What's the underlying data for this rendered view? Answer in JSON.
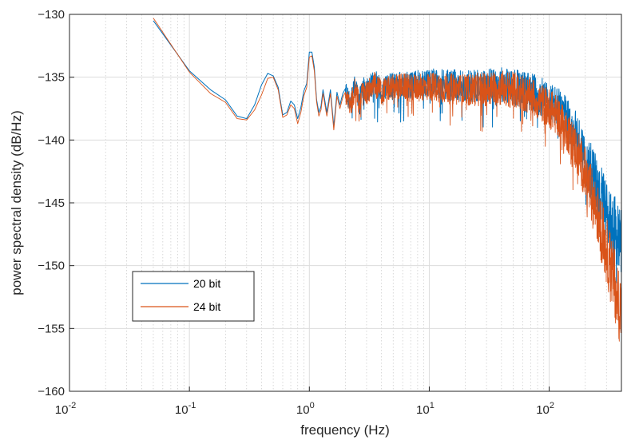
{
  "chart_data": {
    "type": "line",
    "title": "",
    "xlabel": "frequency (Hz)",
    "ylabel": "power spectral density (dB/Hz)",
    "xscale": "log",
    "xlim": [
      0.01,
      400
    ],
    "ylim": [
      -160,
      -130
    ],
    "grid": true,
    "x_ticks": [
      {
        "value": 0.01,
        "base": "10",
        "exp": "-2"
      },
      {
        "value": 0.1,
        "base": "10",
        "exp": "-1"
      },
      {
        "value": 1,
        "base": "10",
        "exp": "0"
      },
      {
        "value": 10,
        "base": "10",
        "exp": "1"
      },
      {
        "value": 100,
        "base": "10",
        "exp": "2"
      }
    ],
    "y_ticks": [
      {
        "value": -130,
        "label": "−130"
      },
      {
        "value": -135,
        "label": "−135"
      },
      {
        "value": -140,
        "label": "−140"
      },
      {
        "value": -145,
        "label": "−145"
      },
      {
        "value": -150,
        "label": "−150"
      },
      {
        "value": -155,
        "label": "−155"
      },
      {
        "value": -160,
        "label": "−160"
      }
    ],
    "legend": {
      "placement": "lower-left",
      "entries": [
        "20 bit",
        "24 bit"
      ]
    },
    "series": [
      {
        "name": "20 bit",
        "color": "#0072BD",
        "x": [
          0.05,
          0.1,
          0.15,
          0.2,
          0.25,
          0.3,
          0.35,
          0.4,
          0.45,
          0.5,
          0.55,
          0.6,
          0.65,
          0.7,
          0.75,
          0.8,
          0.85,
          0.9,
          0.95,
          1.0,
          1.05,
          1.1,
          1.15,
          1.2,
          1.25,
          1.3,
          1.4,
          1.5,
          1.6,
          1.7,
          1.8,
          1.9,
          2.0,
          2.2,
          2.4,
          2.6,
          2.8,
          3.0,
          3.5,
          4,
          5,
          6,
          7,
          8,
          9,
          10,
          15,
          20,
          30,
          40,
          50,
          60,
          70,
          80,
          100,
          120,
          150,
          180,
          200,
          250,
          300,
          350,
          400
        ],
        "y": [
          -130.5,
          -134.5,
          -136.0,
          -136.8,
          -138.1,
          -138.3,
          -137.2,
          -135.6,
          -134.7,
          -134.9,
          -135.8,
          -138.0,
          -137.8,
          -136.9,
          -137.2,
          -138.3,
          -137.4,
          -136.1,
          -135.5,
          -133.0,
          -133.0,
          -134.2,
          -136.8,
          -137.8,
          -137.3,
          -136.0,
          -137.8,
          -136.0,
          -138.9,
          -136.2,
          -137.2,
          -136.3,
          -135.9,
          -137.0,
          -135.5,
          -136.8,
          -135.6,
          -136.0,
          -135.2,
          -135.8,
          -135.5,
          -135.4,
          -135.6,
          -135.4,
          -135.5,
          -135.3,
          -135.5,
          -135.6,
          -135.5,
          -135.4,
          -135.6,
          -135.8,
          -136.0,
          -136.3,
          -136.8,
          -137.3,
          -138.5,
          -140.0,
          -141.2,
          -143.5,
          -145.5,
          -147.0,
          -148.0
        ]
      },
      {
        "name": "24 bit",
        "color": "#D95319",
        "x": [
          0.05,
          0.1,
          0.15,
          0.2,
          0.25,
          0.3,
          0.35,
          0.4,
          0.45,
          0.5,
          0.55,
          0.6,
          0.65,
          0.7,
          0.75,
          0.8,
          0.85,
          0.9,
          0.95,
          1.0,
          1.05,
          1.1,
          1.15,
          1.2,
          1.25,
          1.3,
          1.4,
          1.5,
          1.6,
          1.7,
          1.8,
          1.9,
          2.0,
          2.2,
          2.4,
          2.6,
          2.8,
          3.0,
          3.5,
          4,
          5,
          6,
          7,
          8,
          9,
          10,
          15,
          20,
          30,
          40,
          50,
          60,
          70,
          80,
          100,
          120,
          150,
          180,
          200,
          250,
          300,
          350,
          400
        ],
        "y": [
          -130.3,
          -134.6,
          -136.3,
          -137.0,
          -138.3,
          -138.4,
          -137.6,
          -136.4,
          -135.1,
          -135.0,
          -136.0,
          -138.2,
          -138.0,
          -137.2,
          -137.5,
          -138.7,
          -137.8,
          -136.5,
          -135.8,
          -133.4,
          -133.3,
          -134.5,
          -137.0,
          -138.1,
          -137.6,
          -136.3,
          -138.1,
          -136.3,
          -139.2,
          -136.5,
          -137.5,
          -136.6,
          -136.2,
          -137.3,
          -135.8,
          -137.0,
          -135.9,
          -136.2,
          -135.4,
          -136.0,
          -135.7,
          -135.6,
          -135.8,
          -135.6,
          -135.7,
          -135.6,
          -135.8,
          -135.9,
          -135.8,
          -135.7,
          -135.9,
          -136.1,
          -136.4,
          -136.7,
          -137.3,
          -138.0,
          -139.5,
          -141.2,
          -142.6,
          -145.5,
          -148.5,
          -151.0,
          -153.5
        ]
      }
    ]
  }
}
